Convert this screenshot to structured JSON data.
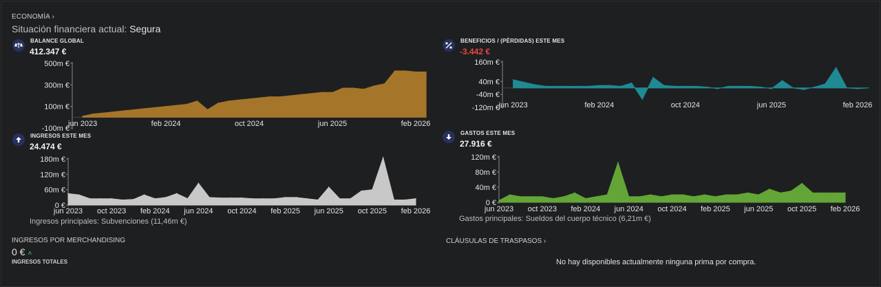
{
  "header": {
    "breadcrumb": "ECONOMÍA",
    "breadcrumb_chevron": "›",
    "status_label": "Situación financiera actual:",
    "status_value": "Segura"
  },
  "panels": {
    "balance": {
      "title": "BALANCE GLOBAL",
      "value": "412.347 €",
      "icon": "scale-icon"
    },
    "profit": {
      "title": "BENEFICIOS / (PÉRDIDAS) ESTE MES",
      "value": "-3.442 €",
      "icon": "percent-icon",
      "value_color": "#e5483e"
    },
    "income": {
      "title": "INGRESOS ESTE MES",
      "value": "24.474 €",
      "icon": "arrow-up-icon",
      "footer": "Ingresos principales: Subvenciones (11,46m €)"
    },
    "expenses": {
      "title": "GASTOS ESTE MES",
      "value": "27.916 €",
      "icon": "arrow-down-icon",
      "footer": "Gastos principales: Sueldos del cuerpo técnico (6,21m €)"
    }
  },
  "merch": {
    "label": "INGRESOS POR MERCHANDISING",
    "value": "0 €",
    "total_label": "INGRESOS TOTALES"
  },
  "transfers": {
    "label": "CLÁUSULAS DE TRASPASOS",
    "chevron": "›",
    "empty": "No hay disponibles actualmente ninguna prima por compra."
  },
  "colors": {
    "balance": "#a5762a",
    "profit": "#1e8a94",
    "income": "#c8c8c8",
    "expenses": "#63a536",
    "negative": "#e5483e",
    "icon_bg": "#26315e"
  },
  "chart_data": [
    {
      "id": "balance",
      "type": "area",
      "ylim": [
        -100,
        500
      ],
      "yticks": [
        "-100m €",
        "100m €",
        "300m €",
        "500m €"
      ],
      "ytick_values": [
        -100,
        100,
        300,
        500
      ],
      "xticks": [
        "jun 2023",
        "feb 2024",
        "oct 2024",
        "jun 2025",
        "feb 2026"
      ],
      "xtick_positions": [
        0,
        8,
        16,
        24,
        32
      ],
      "x_range": [
        -1,
        32
      ],
      "values": [
        10,
        30,
        40,
        50,
        60,
        70,
        80,
        90,
        100,
        110,
        120,
        150,
        70,
        130,
        150,
        160,
        170,
        180,
        190,
        190,
        200,
        210,
        220,
        230,
        230,
        270,
        270,
        260,
        290,
        310,
        430,
        430,
        420,
        420
      ]
    },
    {
      "id": "profit",
      "type": "area",
      "ylim": [
        -120,
        160
      ],
      "yticks": [
        "-120m €",
        "-40m €",
        "40m €",
        "160m €"
      ],
      "ytick_values": [
        -120,
        -40,
        40,
        160
      ],
      "xticks": [
        "jun 2023",
        "feb 2024",
        "oct 2024",
        "jun 2025",
        "feb 2026"
      ],
      "xtick_positions": [
        0,
        8,
        16,
        24,
        32
      ],
      "x_range": [
        -1,
        32
      ],
      "values": [
        50,
        35,
        20,
        10,
        10,
        10,
        10,
        10,
        15,
        15,
        10,
        30,
        -70,
        65,
        15,
        10,
        10,
        10,
        5,
        -5,
        10,
        10,
        10,
        5,
        -5,
        45,
        0,
        -10,
        5,
        25,
        125,
        0,
        -5,
        0
      ]
    },
    {
      "id": "income",
      "type": "area",
      "ylim": [
        0,
        180
      ],
      "yticks": [
        "0 €",
        "60m €",
        "120m €",
        "180m €"
      ],
      "ytick_values": [
        0,
        60,
        120,
        180
      ],
      "xticks": [
        "jun 2023",
        "oct 2023",
        "feb 2024",
        "jun 2024",
        "oct 2024",
        "feb 2025",
        "jun 2025",
        "oct 2025",
        "feb 2026"
      ],
      "xtick_positions": [
        0,
        4,
        8,
        12,
        16,
        20,
        24,
        28,
        32
      ],
      "x_range": [
        0,
        32
      ],
      "values": [
        45,
        40,
        25,
        25,
        25,
        20,
        22,
        40,
        25,
        30,
        45,
        25,
        85,
        30,
        28,
        28,
        28,
        25,
        25,
        25,
        30,
        30,
        25,
        20,
        70,
        25,
        25,
        55,
        60,
        185,
        20,
        20,
        25
      ]
    },
    {
      "id": "expenses",
      "type": "area",
      "ylim": [
        0,
        120
      ],
      "yticks": [
        "0 €",
        "40m €",
        "80m €",
        "120m €"
      ],
      "ytick_values": [
        0,
        40,
        80,
        120
      ],
      "xticks": [
        "jun 2023",
        "oct 2023",
        "feb 2024",
        "jun 2024",
        "oct 2024",
        "feb 2025",
        "jun 2025",
        "oct 2025",
        "feb 2026"
      ],
      "xtick_positions": [
        0,
        4,
        8,
        12,
        16,
        20,
        24,
        28,
        32
      ],
      "x_range": [
        0,
        32
      ],
      "values": [
        5,
        20,
        15,
        15,
        15,
        10,
        15,
        25,
        10,
        15,
        20,
        105,
        15,
        15,
        20,
        15,
        20,
        20,
        15,
        20,
        15,
        20,
        20,
        25,
        20,
        35,
        25,
        30,
        50,
        25,
        25,
        25,
        25
      ]
    }
  ]
}
